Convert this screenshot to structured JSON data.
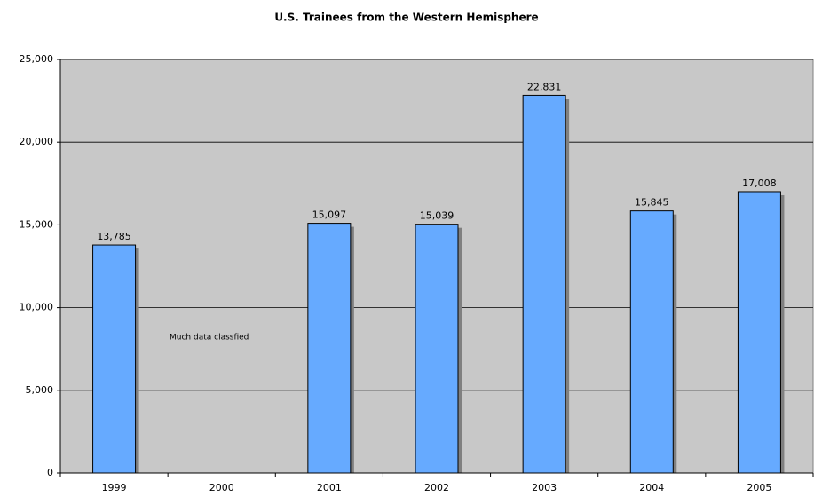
{
  "chart_data": {
    "type": "bar",
    "title": "U.S. Trainees from the Western Hemisphere",
    "categories": [
      "1999",
      "2000",
      "2001",
      "2002",
      "2003",
      "2004",
      "2005"
    ],
    "values": [
      13785,
      null,
      15097,
      15039,
      22831,
      15845,
      17008
    ],
    "value_labels": [
      "13,785",
      null,
      "15,097",
      "15,039",
      "22,831",
      "15,845",
      "17,008"
    ],
    "color": "#66aaff",
    "ylim": [
      0,
      25000
    ],
    "yticks": [
      0,
      {
        "value": 5000,
        "label": "5,000"
      },
      {
        "value": 10000,
        "label": "10,000"
      },
      {
        "value": 15000,
        "label": "15,000"
      },
      {
        "value": 20000,
        "label": "20,000"
      },
      {
        "value": 25000,
        "label": "25,000"
      }
    ],
    "grid": true,
    "annotations": [
      "Much data classfied"
    ]
  }
}
